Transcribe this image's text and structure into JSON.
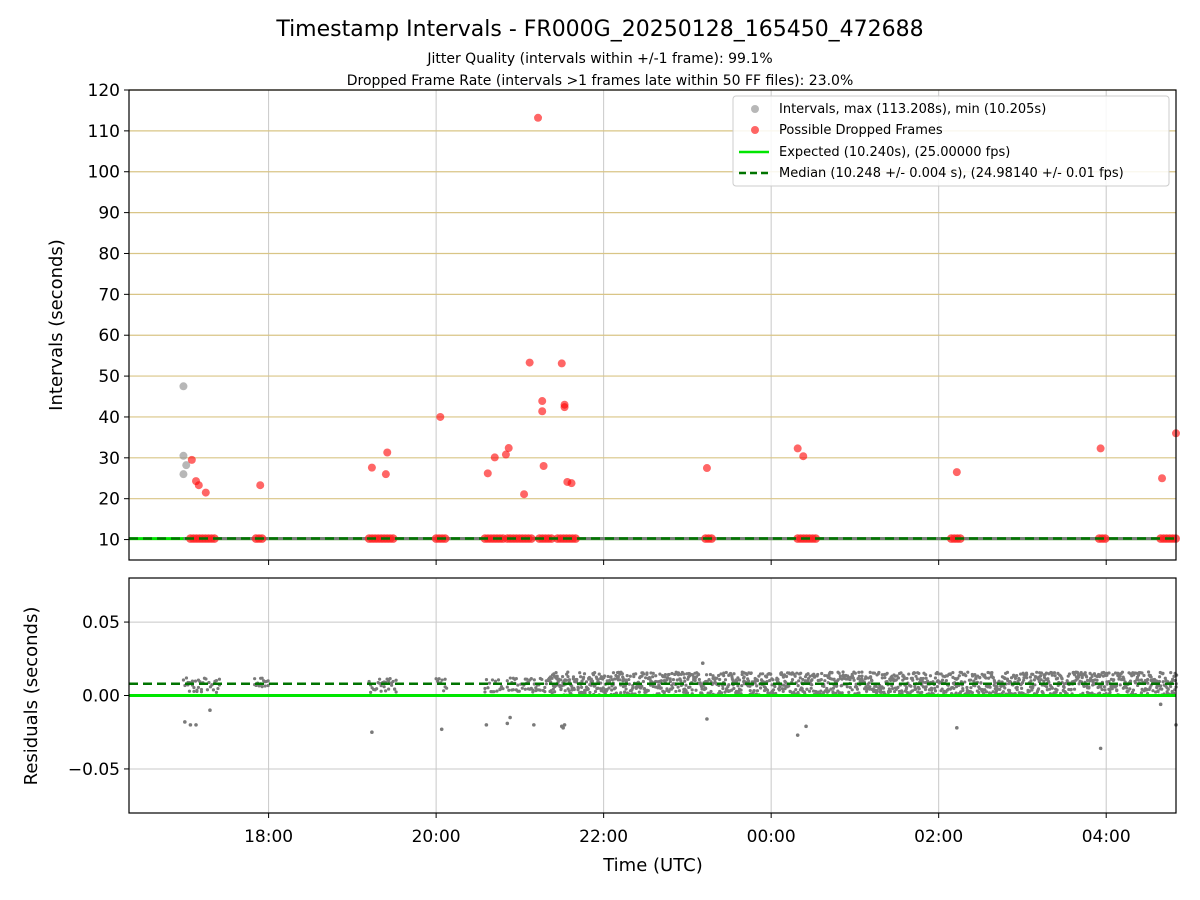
{
  "chart_data": [
    {
      "type": "scatter",
      "title": "Timestamp Intervals - FR000G_20250128_165450_472688",
      "subtitle_1": "Jitter Quality (intervals within +/-1 frame): 99.1%",
      "subtitle_2": "Dropped Frame Rate (intervals >1 frames late within 50 FF files): 23.0%",
      "xlabel": "",
      "ylabel": "Intervals (seconds)",
      "xlim": [
        "16:20",
        "04:50"
      ],
      "ylim": [
        5,
        120
      ],
      "yticks": [
        10,
        20,
        30,
        40,
        50,
        60,
        70,
        80,
        90,
        100,
        110,
        120
      ],
      "grid": "horizontal gold lines and vertical gray lines",
      "legend_position": "top-right",
      "legend": [
        {
          "label": "Intervals, max (113.208s), min (10.205s)",
          "kind": "marker",
          "color": "#999999"
        },
        {
          "label": "Possible Dropped Frames",
          "kind": "marker",
          "color": "#ff0000"
        },
        {
          "label": "Expected (10.240s), (25.00000 fps)",
          "kind": "line",
          "color": "#00e600"
        },
        {
          "label": "Median (10.248 +/- 0.004 s), (24.98140 +/- 0.01 fps)",
          "kind": "dashed",
          "color": "#007400"
        }
      ],
      "expected_interval": 10.24,
      "median_interval": 10.248,
      "normal_points": [
        {
          "x": "16:59",
          "y": 47.5
        },
        {
          "x": "16:59",
          "y": 30.5
        },
        {
          "x": "16:59",
          "y": 26.0
        },
        {
          "x": "17:01",
          "y": 28.2
        }
      ],
      "dropped_points": [
        {
          "x": "17:05",
          "y": 29.5
        },
        {
          "x": "17:08",
          "y": 24.3
        },
        {
          "x": "17:10",
          "y": 23.3
        },
        {
          "x": "17:15",
          "y": 21.5
        },
        {
          "x": "17:54",
          "y": 23.3
        },
        {
          "x": "19:14",
          "y": 27.6
        },
        {
          "x": "19:24",
          "y": 26.0
        },
        {
          "x": "19:25",
          "y": 31.3
        },
        {
          "x": "20:03",
          "y": 40.0
        },
        {
          "x": "20:37",
          "y": 26.2
        },
        {
          "x": "20:42",
          "y": 30.1
        },
        {
          "x": "20:50",
          "y": 30.8
        },
        {
          "x": "20:52",
          "y": 32.4
        },
        {
          "x": "21:03",
          "y": 21.1
        },
        {
          "x": "21:07",
          "y": 53.3
        },
        {
          "x": "21:13",
          "y": 113.2
        },
        {
          "x": "21:16",
          "y": 41.4
        },
        {
          "x": "21:16",
          "y": 43.9
        },
        {
          "x": "21:17",
          "y": 28.0
        },
        {
          "x": "21:30",
          "y": 53.1
        },
        {
          "x": "21:32",
          "y": 43.0
        },
        {
          "x": "21:32",
          "y": 42.4
        },
        {
          "x": "21:34",
          "y": 24.1
        },
        {
          "x": "21:37",
          "y": 23.8
        },
        {
          "x": "23:14",
          "y": 27.5
        },
        {
          "x": "00:19",
          "y": 32.3
        },
        {
          "x": "00:23",
          "y": 30.4
        },
        {
          "x": "02:13",
          "y": 26.5
        },
        {
          "x": "03:56",
          "y": 32.3
        },
        {
          "x": "04:40",
          "y": 25.0
        },
        {
          "x": "04:50",
          "y": 36.0
        }
      ],
      "baseline_dropped_ranges": [
        [
          "17:04",
          "17:23"
        ],
        [
          "17:51",
          "17:57"
        ],
        [
          "19:12",
          "19:31"
        ],
        [
          "20:00",
          "20:08"
        ],
        [
          "20:35",
          "20:49"
        ],
        [
          "20:51",
          "21:10"
        ],
        [
          "21:14",
          "21:24"
        ],
        [
          "21:27",
          "21:42"
        ],
        [
          "23:13",
          "23:19"
        ],
        [
          "00:19",
          "00:33"
        ],
        [
          "02:09",
          "02:16"
        ],
        [
          "03:55",
          "04:00"
        ],
        [
          "04:39",
          "04:50"
        ]
      ]
    },
    {
      "type": "scatter",
      "title": "",
      "xlabel": "Time (UTC)",
      "ylabel": "Residuals (seconds)",
      "xlim": [
        "16:20",
        "04:50"
      ],
      "ylim": [
        -0.08,
        0.08
      ],
      "yticks": [
        0.05,
        0.0,
        -0.05
      ],
      "ytick_labels": [
        "0.05",
        "0.00",
        "−0.05"
      ],
      "xticks": [
        "18:00",
        "20:00",
        "22:00",
        "00:00",
        "02:00",
        "04:00"
      ],
      "grid": "horizontal and vertical gray lines",
      "median_residual": 0.008,
      "expected_residual": 0.0,
      "dense_band": {
        "x_range": [
          "21:20",
          "04:50"
        ],
        "y_range": [
          0.0,
          0.016
        ]
      },
      "sparse_band": {
        "x_range": [
          "16:59",
          "21:20"
        ],
        "y_range": [
          0.002,
          0.012
        ]
      },
      "outliers": [
        {
          "x": "17:00",
          "y": -0.018
        },
        {
          "x": "17:04",
          "y": -0.02
        },
        {
          "x": "17:08",
          "y": -0.02
        },
        {
          "x": "17:18",
          "y": -0.01
        },
        {
          "x": "19:14",
          "y": -0.025
        },
        {
          "x": "20:04",
          "y": -0.023
        },
        {
          "x": "20:36",
          "y": -0.02
        },
        {
          "x": "20:51",
          "y": -0.019
        },
        {
          "x": "20:53",
          "y": -0.015
        },
        {
          "x": "21:10",
          "y": -0.02
        },
        {
          "x": "21:30",
          "y": -0.021
        },
        {
          "x": "21:31",
          "y": -0.022
        },
        {
          "x": "21:32",
          "y": -0.02
        },
        {
          "x": "23:14",
          "y": -0.016
        },
        {
          "x": "00:19",
          "y": -0.027
        },
        {
          "x": "00:25",
          "y": -0.021
        },
        {
          "x": "02:13",
          "y": -0.022
        },
        {
          "x": "03:56",
          "y": -0.036
        },
        {
          "x": "04:39",
          "y": -0.006
        },
        {
          "x": "04:50",
          "y": -0.02
        },
        {
          "x": "23:11",
          "y": 0.022
        }
      ]
    }
  ]
}
